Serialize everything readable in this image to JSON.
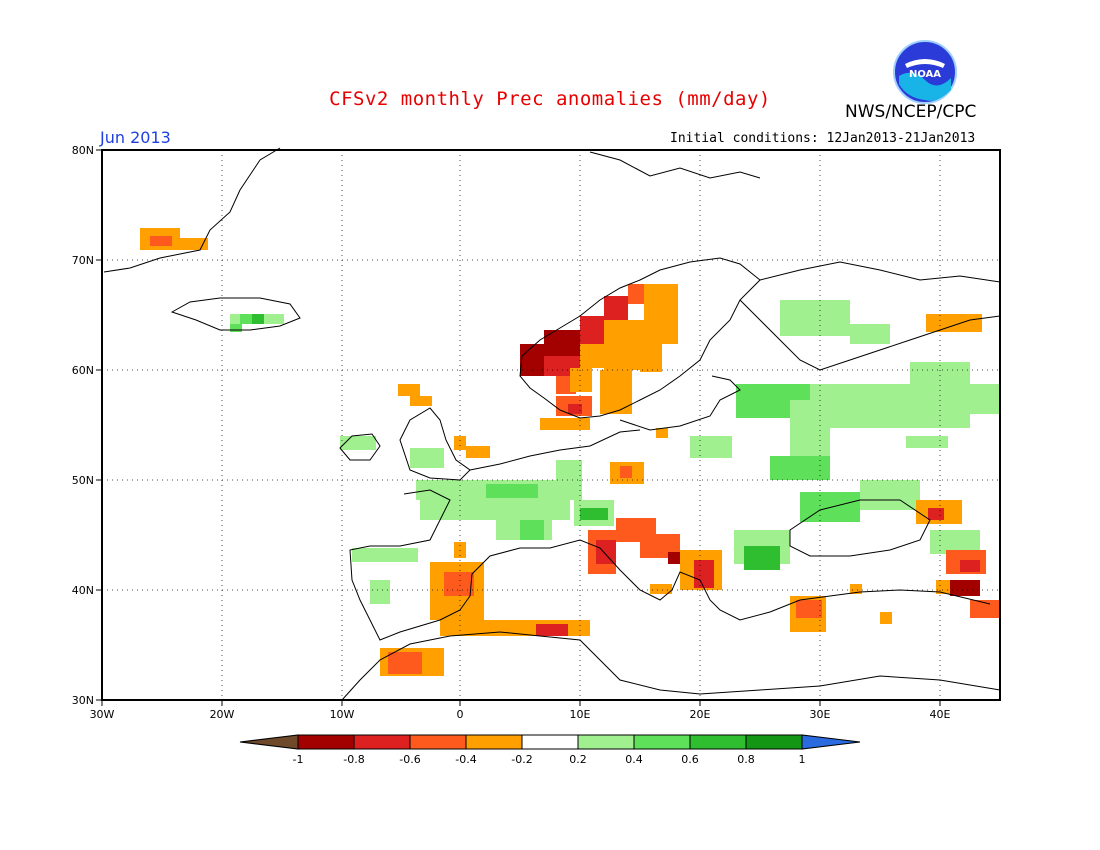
{
  "header": {
    "title": "CFSv2 monthly Prec anomalies (mm/day)",
    "agency": "NWS/NCEP/CPC",
    "logo_text": "NOAA",
    "valid_month": "Jun 2013",
    "initial_conditions": "Initial conditions: 12Jan2013-21Jan2013"
  },
  "map": {
    "lat_labels": [
      "80N",
      "70N",
      "60N",
      "50N",
      "40N",
      "30N"
    ],
    "lon_labels": [
      "30W",
      "20W",
      "10W",
      "0",
      "10E",
      "20E",
      "30E",
      "40E"
    ]
  },
  "legend": {
    "tick_labels": [
      "-1",
      "-0.8",
      "-0.6",
      "-0.4",
      "-0.2",
      "0.2",
      "0.4",
      "0.6",
      "0.8",
      "1"
    ],
    "colors": [
      "#6e4a2a",
      "#a30000",
      "#dd2020",
      "#ff5a1e",
      "#ffa000",
      "#ffffff",
      "#a0f090",
      "#5ee05a",
      "#2fbe2f",
      "#139613",
      "#2a6be0"
    ]
  },
  "colors": {
    "title": "#e80000",
    "valid_month": "#1f3fe0"
  }
}
